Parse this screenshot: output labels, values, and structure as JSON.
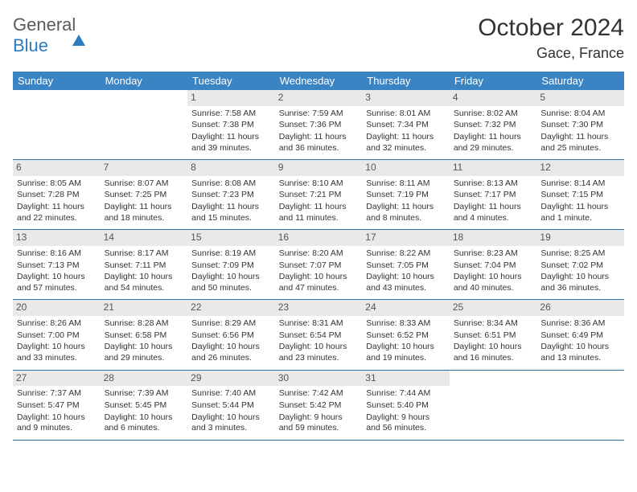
{
  "logo": {
    "word1": "General",
    "word2": "Blue"
  },
  "title": "October 2024",
  "location": "Gace, France",
  "colors": {
    "header_bg": "#3b84c4",
    "header_text": "#ffffff",
    "daynum_bg": "#e9e9e9",
    "week_border": "#2f6fa3",
    "text": "#333333",
    "background": "#ffffff"
  },
  "fonts": {
    "title_size": 30,
    "location_size": 18,
    "dayheader_size": 13,
    "cell_size": 10.5,
    "daynum_size": 12
  },
  "dayNames": [
    "Sunday",
    "Monday",
    "Tuesday",
    "Wednesday",
    "Thursday",
    "Friday",
    "Saturday"
  ],
  "weeks": [
    [
      null,
      null,
      {
        "n": "1",
        "sr": "7:58 AM",
        "ss": "7:38 PM",
        "dl": "11 hours and 39 minutes."
      },
      {
        "n": "2",
        "sr": "7:59 AM",
        "ss": "7:36 PM",
        "dl": "11 hours and 36 minutes."
      },
      {
        "n": "3",
        "sr": "8:01 AM",
        "ss": "7:34 PM",
        "dl": "11 hours and 32 minutes."
      },
      {
        "n": "4",
        "sr": "8:02 AM",
        "ss": "7:32 PM",
        "dl": "11 hours and 29 minutes."
      },
      {
        "n": "5",
        "sr": "8:04 AM",
        "ss": "7:30 PM",
        "dl": "11 hours and 25 minutes."
      }
    ],
    [
      {
        "n": "6",
        "sr": "8:05 AM",
        "ss": "7:28 PM",
        "dl": "11 hours and 22 minutes."
      },
      {
        "n": "7",
        "sr": "8:07 AM",
        "ss": "7:25 PM",
        "dl": "11 hours and 18 minutes."
      },
      {
        "n": "8",
        "sr": "8:08 AM",
        "ss": "7:23 PM",
        "dl": "11 hours and 15 minutes."
      },
      {
        "n": "9",
        "sr": "8:10 AM",
        "ss": "7:21 PM",
        "dl": "11 hours and 11 minutes."
      },
      {
        "n": "10",
        "sr": "8:11 AM",
        "ss": "7:19 PM",
        "dl": "11 hours and 8 minutes."
      },
      {
        "n": "11",
        "sr": "8:13 AM",
        "ss": "7:17 PM",
        "dl": "11 hours and 4 minutes."
      },
      {
        "n": "12",
        "sr": "8:14 AM",
        "ss": "7:15 PM",
        "dl": "11 hours and 1 minute."
      }
    ],
    [
      {
        "n": "13",
        "sr": "8:16 AM",
        "ss": "7:13 PM",
        "dl": "10 hours and 57 minutes."
      },
      {
        "n": "14",
        "sr": "8:17 AM",
        "ss": "7:11 PM",
        "dl": "10 hours and 54 minutes."
      },
      {
        "n": "15",
        "sr": "8:19 AM",
        "ss": "7:09 PM",
        "dl": "10 hours and 50 minutes."
      },
      {
        "n": "16",
        "sr": "8:20 AM",
        "ss": "7:07 PM",
        "dl": "10 hours and 47 minutes."
      },
      {
        "n": "17",
        "sr": "8:22 AM",
        "ss": "7:05 PM",
        "dl": "10 hours and 43 minutes."
      },
      {
        "n": "18",
        "sr": "8:23 AM",
        "ss": "7:04 PM",
        "dl": "10 hours and 40 minutes."
      },
      {
        "n": "19",
        "sr": "8:25 AM",
        "ss": "7:02 PM",
        "dl": "10 hours and 36 minutes."
      }
    ],
    [
      {
        "n": "20",
        "sr": "8:26 AM",
        "ss": "7:00 PM",
        "dl": "10 hours and 33 minutes."
      },
      {
        "n": "21",
        "sr": "8:28 AM",
        "ss": "6:58 PM",
        "dl": "10 hours and 29 minutes."
      },
      {
        "n": "22",
        "sr": "8:29 AM",
        "ss": "6:56 PM",
        "dl": "10 hours and 26 minutes."
      },
      {
        "n": "23",
        "sr": "8:31 AM",
        "ss": "6:54 PM",
        "dl": "10 hours and 23 minutes."
      },
      {
        "n": "24",
        "sr": "8:33 AM",
        "ss": "6:52 PM",
        "dl": "10 hours and 19 minutes."
      },
      {
        "n": "25",
        "sr": "8:34 AM",
        "ss": "6:51 PM",
        "dl": "10 hours and 16 minutes."
      },
      {
        "n": "26",
        "sr": "8:36 AM",
        "ss": "6:49 PM",
        "dl": "10 hours and 13 minutes."
      }
    ],
    [
      {
        "n": "27",
        "sr": "7:37 AM",
        "ss": "5:47 PM",
        "dl": "10 hours and 9 minutes."
      },
      {
        "n": "28",
        "sr": "7:39 AM",
        "ss": "5:45 PM",
        "dl": "10 hours and 6 minutes."
      },
      {
        "n": "29",
        "sr": "7:40 AM",
        "ss": "5:44 PM",
        "dl": "10 hours and 3 minutes."
      },
      {
        "n": "30",
        "sr": "7:42 AM",
        "ss": "5:42 PM",
        "dl": "9 hours and 59 minutes."
      },
      {
        "n": "31",
        "sr": "7:44 AM",
        "ss": "5:40 PM",
        "dl": "9 hours and 56 minutes."
      },
      null,
      null
    ]
  ],
  "labels": {
    "sunrise": "Sunrise:",
    "sunset": "Sunset:",
    "daylight": "Daylight:"
  }
}
